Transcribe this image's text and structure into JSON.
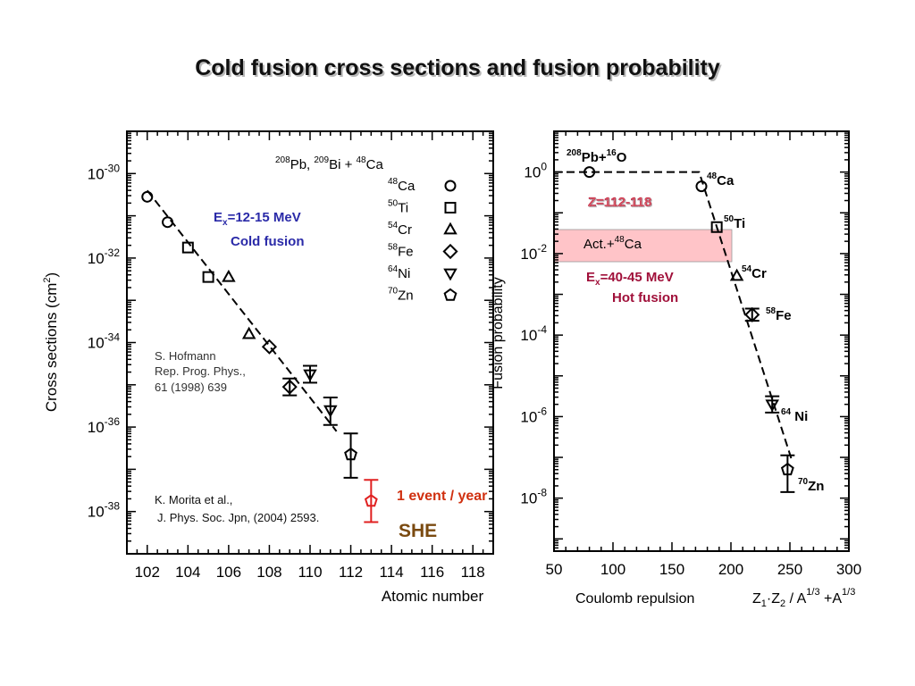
{
  "title": "Cold fusion cross sections and fusion probability",
  "colors": {
    "ink": "#000000",
    "blue_note": "#2a2aa8",
    "red_note": "#a0103a",
    "she_red": "#e02020",
    "she_text": "#7a4a10",
    "band_fill": "#ffc4c8"
  },
  "left_chart": {
    "ylabel_base": "Cross sections  (cm",
    "ylabel_sup": "2",
    "ylabel_close": ")",
    "xlabel": "Atomic number",
    "x_ticks": [
      "102",
      "104",
      "106",
      "108",
      "110",
      "112",
      "114",
      "116",
      "118"
    ],
    "y_ticks": [
      {
        "base": "10",
        "exp": "-30"
      },
      {
        "base": "10",
        "exp": "-32"
      },
      {
        "base": "10",
        "exp": "-34"
      },
      {
        "base": "10",
        "exp": "-36"
      },
      {
        "base": "10",
        "exp": "-38"
      }
    ],
    "legend_header": {
      "t1": "208",
      "t2": "Pb, ",
      "t3": "209",
      "t4": "Bi  +  ",
      "t5": "48",
      "t6": "Ca"
    },
    "legend": [
      {
        "mass": "48",
        "el": "Ca",
        "marker": "circle"
      },
      {
        "mass": "50",
        "el": "Ti",
        "marker": "square"
      },
      {
        "mass": "54",
        "el": "Cr",
        "marker": "triangle-up"
      },
      {
        "mass": "58",
        "el": "Fe",
        "marker": "diamond"
      },
      {
        "mass": "64",
        "el": "Ni",
        "marker": "triangle-down"
      },
      {
        "mass": "70",
        "el": "Zn",
        "marker": "pentagon"
      }
    ],
    "ex_note": {
      "e": "E",
      "sub": "x",
      "rest": "=12-15 MeV",
      "line2": "Cold fusion"
    },
    "ref1": [
      "S. Hofmann",
      "Rep. Prog. Phys.,",
      "61 (1998) 639"
    ],
    "ref2": [
      "K. Morita et al.,",
      "J. Phys. Soc. Jpn, (2004) 2593."
    ],
    "she_event": "1 event / year",
    "she_label": "SHE"
  },
  "right_chart": {
    "ylabel": "Fusion probability",
    "xlabel": {
      "t1": "Coulomb repulsion",
      "t2": "Z",
      "t3": "1",
      "t4": "·Z",
      "t5": "2",
      "t6": " / A",
      "t7": "1/3",
      "t8": " +A",
      "t9": "1/3"
    },
    "x_ticks": [
      "50",
      "100",
      "150",
      "200",
      "250",
      "300"
    ],
    "y_ticks": [
      {
        "base": "10",
        "exp": "0"
      },
      {
        "base": "10",
        "exp": "-2"
      },
      {
        "base": "10",
        "exp": "-4"
      },
      {
        "base": "10",
        "exp": "-6"
      },
      {
        "base": "10",
        "exp": "-8"
      }
    ],
    "labels": {
      "pb_o": {
        "a": "208",
        "b": "Pb+",
        "c": "16",
        "d": "O"
      },
      "ca": {
        "a": "48",
        "b": "Ca"
      },
      "ti": {
        "a": "50",
        "b": "Ti"
      },
      "cr": {
        "a": "54",
        "b": "Cr"
      },
      "fe": {
        "a": "58",
        "b": "Fe"
      },
      "ni": {
        "a": "64",
        "b": " Ni"
      },
      "zn": {
        "a": "70",
        "b": "Zn"
      }
    },
    "z_range": "Z=112-118",
    "act_band": {
      "t1": "Act.+",
      "t2": "48",
      "t3": "Ca"
    },
    "ex_note": {
      "e": "E",
      "sub": "x",
      "rest": "=40-45 MeV",
      "line2": "Hot fusion"
    }
  },
  "chart_data": [
    {
      "type": "scatter",
      "xlabel": "Atomic number",
      "ylabel": "Cross sections  (cm2)",
      "xlim": [
        101,
        119
      ],
      "ylim_log10": [
        -39,
        -29
      ],
      "x_ticks": [
        102,
        104,
        106,
        108,
        110,
        112,
        114,
        116,
        118
      ],
      "yscale": "log",
      "grid": false,
      "series": [
        {
          "name": "48Ca",
          "marker": "circle",
          "points": [
            {
              "x": 102,
              "y_log10": -30.55
            },
            {
              "x": 103,
              "y_log10": -31.15
            }
          ]
        },
        {
          "name": "50Ti",
          "marker": "square",
          "points": [
            {
              "x": 104,
              "y_log10": -31.75
            },
            {
              "x": 105,
              "y_log10": -32.45
            }
          ]
        },
        {
          "name": "54Cr",
          "marker": "triangle-up",
          "points": [
            {
              "x": 106,
              "y_log10": -32.45
            },
            {
              "x": 107,
              "y_log10": -33.8
            }
          ]
        },
        {
          "name": "58Fe",
          "marker": "diamond",
          "points": [
            {
              "x": 108,
              "y_log10": -34.1
            },
            {
              "x": 109,
              "y_log10": -35.05,
              "err_lo": 0.2,
              "err_hi": 0.2
            }
          ]
        },
        {
          "name": "64Ni",
          "marker": "triangle-down",
          "points": [
            {
              "x": 110,
              "y_log10": -34.75,
              "err_lo": 0.2,
              "err_hi": 0.2
            },
            {
              "x": 111,
              "y_log10": -35.6,
              "err_lo": 0.35,
              "err_hi": 0.3
            }
          ]
        },
        {
          "name": "70Zn",
          "marker": "pentagon",
          "points": [
            {
              "x": 112,
              "y_log10": -36.65,
              "err_lo": 0.55,
              "err_hi": 0.5
            }
          ]
        },
        {
          "name": "SHE",
          "marker": "pentagon",
          "color": "#e02020",
          "points": [
            {
              "x": 113,
              "y_log10": -37.75,
              "err_lo": 0.5,
              "err_hi": 0.5
            }
          ]
        }
      ],
      "fit_line": [
        {
          "x": 102,
          "y_log10": -30.4
        },
        {
          "x": 111.3,
          "y_log10": -36.1
        }
      ]
    },
    {
      "type": "scatter",
      "xlabel": "Coulomb repulsion Z1·Z2 / A1/3 +A1/3",
      "ylabel": "Fusion probability",
      "xlim": [
        50,
        300
      ],
      "ylim_log10": [
        -9,
        1
      ],
      "x_ticks": [
        50,
        100,
        150,
        200,
        250,
        300
      ],
      "yscale": "log",
      "grid": false,
      "series": [
        {
          "name": "208Pb+16O",
          "marker": "circle",
          "points": [
            {
              "x": 80,
              "y_log10": 0
            }
          ]
        },
        {
          "name": "48Ca",
          "marker": "circle",
          "points": [
            {
              "x": 175,
              "y_log10": -0.35
            }
          ]
        },
        {
          "name": "50Ti",
          "marker": "square",
          "points": [
            {
              "x": 188,
              "y_log10": -1.35
            }
          ]
        },
        {
          "name": "54Cr",
          "marker": "triangle-up",
          "points": [
            {
              "x": 205,
              "y_log10": -2.55
            }
          ]
        },
        {
          "name": "58Fe",
          "marker": "diamond",
          "points": [
            {
              "x": 218,
              "y_log10": -3.5,
              "err_lo": 0.15,
              "err_hi": 0.15
            }
          ]
        },
        {
          "name": "64Ni",
          "marker": "triangle-down",
          "points": [
            {
              "x": 235,
              "y_log10": -5.7,
              "err_lo": 0.2,
              "err_hi": 0.2
            }
          ]
        },
        {
          "name": "70Zn",
          "marker": "pentagon",
          "points": [
            {
              "x": 248,
              "y_log10": -7.3,
              "err_lo": 0.55,
              "err_hi": 0.35
            }
          ]
        }
      ],
      "fit_line": [
        {
          "x": 50,
          "y_log10": 0
        },
        {
          "x": 173,
          "y_log10": 0
        },
        {
          "x": 252,
          "y_log10": -7.1
        }
      ],
      "band": {
        "label": "Act.+48Ca",
        "x_range": [
          50,
          200
        ],
        "y_log10_range": [
          -2.15,
          -1.25
        ]
      }
    }
  ]
}
